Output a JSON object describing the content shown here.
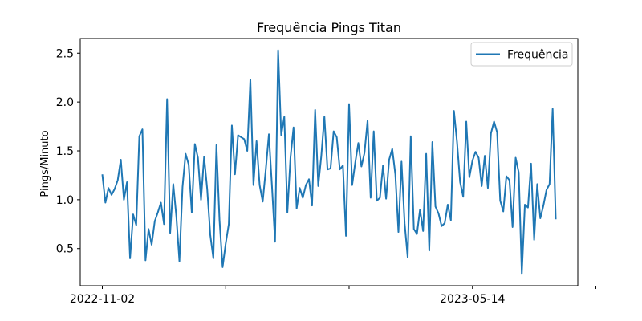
{
  "chart_data": {
    "type": "line",
    "title": "Frequência Pings Titan",
    "xlabel": "",
    "ylabel": "Pings/Minuto",
    "ylim": [
      0.12,
      2.65
    ],
    "yticks": [
      0.5,
      1.0,
      1.5,
      2.0,
      2.5
    ],
    "ytick_labels": [
      "0.5",
      "1.0",
      "1.5",
      "2.0",
      "2.5"
    ],
    "xtick_labels": [
      "2022-11-02",
      "",
      "",
      "2023-05-14",
      ""
    ],
    "legend": {
      "position": "top-right"
    },
    "grid": false,
    "series": [
      {
        "name": "Frequência",
        "color": "#1f77b4",
        "values": [
          1.26,
          0.97,
          1.12,
          1.05,
          1.11,
          1.2,
          1.41,
          1.0,
          1.18,
          0.4,
          0.85,
          0.74,
          1.65,
          1.72,
          0.38,
          0.7,
          0.54,
          0.78,
          0.87,
          0.97,
          0.75,
          2.03,
          0.66,
          1.16,
          0.83,
          0.37,
          1.13,
          1.47,
          1.36,
          0.87,
          1.57,
          1.43,
          1.0,
          1.44,
          1.11,
          0.64,
          0.4,
          1.56,
          0.79,
          0.31,
          0.55,
          0.75,
          1.76,
          1.26,
          1.66,
          1.64,
          1.62,
          1.5,
          2.23,
          1.15,
          1.6,
          1.15,
          0.98,
          1.31,
          1.67,
          1.14,
          0.57,
          2.53,
          1.66,
          1.85,
          0.87,
          1.43,
          1.74,
          0.91,
          1.12,
          1.02,
          1.15,
          1.21,
          0.94,
          1.92,
          1.14,
          1.45,
          1.85,
          1.31,
          1.32,
          1.7,
          1.64,
          1.31,
          1.35,
          0.63,
          1.98,
          1.15,
          1.38,
          1.58,
          1.34,
          1.48,
          1.81,
          1.02,
          1.7,
          0.99,
          1.02,
          1.35,
          1.01,
          1.41,
          1.52,
          1.26,
          0.67,
          1.39,
          0.76,
          0.41,
          1.65,
          0.7,
          0.65,
          0.9,
          0.68,
          1.47,
          0.48,
          1.59,
          0.93,
          0.86,
          0.73,
          0.76,
          0.95,
          0.79,
          1.91,
          1.59,
          1.18,
          1.03,
          1.8,
          1.23,
          1.4,
          1.49,
          1.43,
          1.14,
          1.45,
          1.12,
          1.68,
          1.8,
          1.69,
          0.99,
          0.88,
          1.24,
          1.2,
          0.72,
          1.43,
          1.28,
          0.24,
          0.95,
          0.92,
          1.37,
          0.59,
          1.16,
          0.81,
          0.94,
          1.1,
          1.16,
          1.93,
          0.8
        ]
      }
    ]
  }
}
